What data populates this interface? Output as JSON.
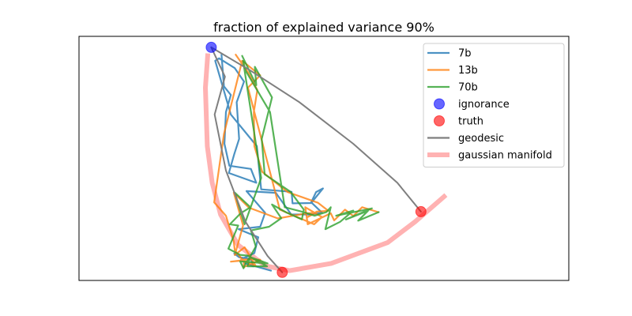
{
  "chart_data": {
    "type": "line",
    "title": "fraction of explained variance 90%",
    "xlabel": "",
    "ylabel": "",
    "xlim": [
      0,
      1
    ],
    "ylim": [
      0,
      1
    ],
    "grid": false,
    "ticks_visible": false,
    "legend_position": "top-right",
    "series": [
      {
        "name": "7b",
        "kind": "line",
        "color": "#1f77b4",
        "points": [
          [
            0.291,
            0.925
          ],
          [
            0.296,
            0.795
          ],
          [
            0.31,
            0.76
          ],
          [
            0.3,
            0.69
          ],
          [
            0.297,
            0.56
          ],
          [
            0.307,
            0.47
          ],
          [
            0.351,
            0.457
          ],
          [
            0.362,
            0.4
          ],
          [
            0.306,
            0.44
          ],
          [
            0.317,
            0.517
          ],
          [
            0.327,
            0.58
          ],
          [
            0.322,
            0.73
          ],
          [
            0.337,
            0.815
          ],
          [
            0.318,
            0.87
          ],
          [
            0.286,
            0.91
          ],
          [
            0.278,
            0.9
          ],
          [
            0.31,
            0.68
          ],
          [
            0.363,
            0.55
          ],
          [
            0.372,
            0.373
          ],
          [
            0.434,
            0.363
          ],
          [
            0.436,
            0.316
          ],
          [
            0.474,
            0.317
          ],
          [
            0.498,
            0.377
          ],
          [
            0.484,
            0.362
          ],
          [
            0.474,
            0.32
          ],
          [
            0.496,
            0.278
          ],
          [
            0.474,
            0.27
          ],
          [
            0.433,
            0.271
          ],
          [
            0.402,
            0.359
          ],
          [
            0.342,
            0.366
          ],
          [
            0.38,
            0.277
          ],
          [
            0.37,
            0.22
          ],
          [
            0.326,
            0.21
          ],
          [
            0.366,
            0.177
          ],
          [
            0.358,
            0.112
          ],
          [
            0.334,
            0.09
          ],
          [
            0.317,
            0.11
          ],
          [
            0.327,
            0.095
          ],
          [
            0.351,
            0.088
          ],
          [
            0.356,
            0.058
          ],
          [
            0.339,
            0.07
          ],
          [
            0.392,
            0.04
          ]
        ]
      },
      {
        "name": "13b",
        "kind": "line",
        "color": "#ff7f0e",
        "points": [
          [
            0.32,
            0.925
          ],
          [
            0.346,
            0.85
          ],
          [
            0.364,
            0.78
          ],
          [
            0.357,
            0.69
          ],
          [
            0.358,
            0.55
          ],
          [
            0.374,
            0.445
          ],
          [
            0.426,
            0.362
          ],
          [
            0.488,
            0.318
          ],
          [
            0.509,
            0.285
          ],
          [
            0.485,
            0.282
          ],
          [
            0.466,
            0.259
          ],
          [
            0.484,
            0.278
          ],
          [
            0.462,
            0.274
          ],
          [
            0.406,
            0.254
          ],
          [
            0.347,
            0.298
          ],
          [
            0.316,
            0.36
          ],
          [
            0.335,
            0.225
          ],
          [
            0.318,
            0.104
          ],
          [
            0.338,
            0.136
          ],
          [
            0.361,
            0.059
          ],
          [
            0.331,
            0.086
          ],
          [
            0.37,
            0.085
          ],
          [
            0.336,
            0.054
          ],
          [
            0.337,
            0.082
          ],
          [
            0.31,
            0.077
          ],
          [
            0.335,
            0.083
          ],
          [
            0.318,
            0.123
          ],
          [
            0.316,
            0.16
          ],
          [
            0.3,
            0.265
          ],
          [
            0.276,
            0.32
          ],
          [
            0.296,
            0.6
          ],
          [
            0.333,
            0.9
          ],
          [
            0.37,
            0.84
          ],
          [
            0.345,
            0.79
          ],
          [
            0.41,
            0.29
          ],
          [
            0.48,
            0.23
          ],
          [
            0.496,
            0.26
          ],
          [
            0.462,
            0.3
          ],
          [
            0.467,
            0.23
          ],
          [
            0.514,
            0.275
          ],
          [
            0.521,
            0.246
          ],
          [
            0.543,
            0.29
          ],
          [
            0.56,
            0.264
          ],
          [
            0.578,
            0.3
          ],
          [
            0.611,
            0.28
          ]
        ]
      },
      {
        "name": "70b",
        "kind": "line",
        "color": "#2ca02c",
        "points": [
          [
            0.333,
            0.92
          ],
          [
            0.362,
            0.8
          ],
          [
            0.359,
            0.875
          ],
          [
            0.394,
            0.75
          ],
          [
            0.373,
            0.58
          ],
          [
            0.379,
            0.435
          ],
          [
            0.432,
            0.363
          ],
          [
            0.459,
            0.29
          ],
          [
            0.455,
            0.25
          ],
          [
            0.424,
            0.278
          ],
          [
            0.394,
            0.311
          ],
          [
            0.413,
            0.255
          ],
          [
            0.388,
            0.22
          ],
          [
            0.351,
            0.205
          ],
          [
            0.361,
            0.139
          ],
          [
            0.349,
            0.096
          ],
          [
            0.385,
            0.07
          ],
          [
            0.329,
            0.078
          ],
          [
            0.336,
            0.05
          ],
          [
            0.341,
            0.073
          ],
          [
            0.349,
            0.095
          ],
          [
            0.344,
            0.058
          ],
          [
            0.384,
            0.058
          ],
          [
            0.344,
            0.102
          ],
          [
            0.329,
            0.105
          ],
          [
            0.305,
            0.13
          ],
          [
            0.325,
            0.225
          ],
          [
            0.308,
            0.23
          ],
          [
            0.33,
            0.275
          ],
          [
            0.35,
            0.3
          ],
          [
            0.318,
            0.36
          ],
          [
            0.338,
            0.23
          ],
          [
            0.372,
            0.42
          ],
          [
            0.335,
            0.9
          ],
          [
            0.34,
            0.86
          ],
          [
            0.39,
            0.69
          ],
          [
            0.42,
            0.3
          ],
          [
            0.459,
            0.28
          ],
          [
            0.481,
            0.265
          ],
          [
            0.505,
            0.28
          ],
          [
            0.514,
            0.3
          ],
          [
            0.503,
            0.21
          ],
          [
            0.533,
            0.24
          ],
          [
            0.56,
            0.286
          ],
          [
            0.525,
            0.265
          ],
          [
            0.598,
            0.295
          ],
          [
            0.545,
            0.25
          ],
          [
            0.59,
            0.285
          ],
          [
            0.57,
            0.245
          ],
          [
            0.612,
            0.28
          ]
        ]
      },
      {
        "name": "ignorance",
        "kind": "scatter",
        "color": "#0000ff",
        "points": [
          [
            0.27,
            0.955
          ]
        ]
      },
      {
        "name": "truth",
        "kind": "scatter",
        "color": "#ff0000",
        "points": [
          [
            0.415,
            0.033
          ],
          [
            0.698,
            0.282
          ]
        ]
      },
      {
        "name": "geodesic",
        "kind": "line",
        "color": "#7f7f7f",
        "points": [
          [
            0.27,
            0.955
          ],
          [
            0.298,
            0.835
          ],
          [
            0.277,
            0.68
          ],
          [
            0.3,
            0.45
          ],
          [
            0.34,
            0.24
          ],
          [
            0.385,
            0.1
          ],
          [
            0.415,
            0.033
          ]
        ],
        "extra_paths": [
          [
            [
              0.27,
              0.955
            ],
            [
              0.35,
              0.86
            ],
            [
              0.45,
              0.73
            ],
            [
              0.56,
              0.56
            ],
            [
              0.65,
              0.4
            ],
            [
              0.698,
              0.282
            ]
          ]
        ]
      },
      {
        "name": "gaussian manifold",
        "kind": "band",
        "color": "#ff6666",
        "points": [
          [
            0.263,
            0.93
          ],
          [
            0.258,
            0.79
          ],
          [
            0.262,
            0.55
          ],
          [
            0.272,
            0.4
          ],
          [
            0.289,
            0.27
          ],
          [
            0.325,
            0.145
          ],
          [
            0.38,
            0.06
          ],
          [
            0.43,
            0.04
          ],
          [
            0.515,
            0.07
          ],
          [
            0.63,
            0.155
          ],
          [
            0.686,
            0.24
          ],
          [
            0.749,
            0.35
          ]
        ]
      }
    ]
  }
}
